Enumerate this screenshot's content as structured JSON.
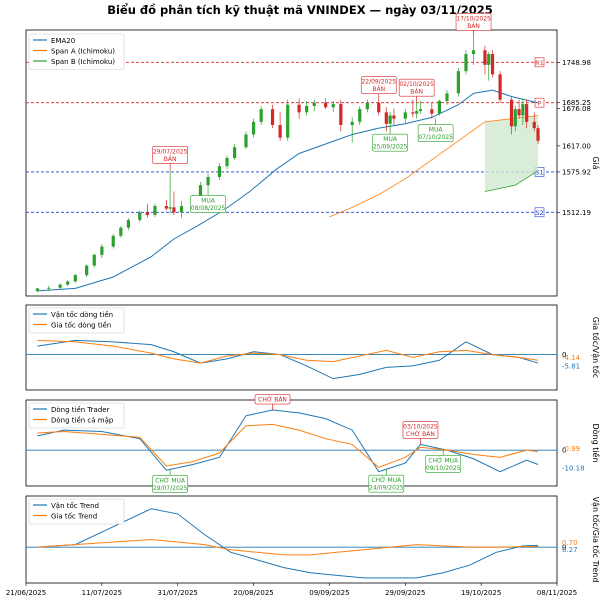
{
  "title": "Biểu đồ phân tích kỹ thuật mã VNINDEX — ngày 03/11/2025",
  "colors": {
    "ema": "#1f77b4",
    "span_a": "#ff7f0e",
    "span_b": "#2ca02c",
    "up": "#2ca02c",
    "down": "#d62728",
    "resistance": "#d62728",
    "support": "#1f3fd6",
    "cloud": "#cfe8cf",
    "zero": "#1f77b4"
  },
  "x_ticks": [
    "21/06/2025",
    "11/07/2025",
    "31/07/2025",
    "20/08/2025",
    "09/09/2025",
    "29/09/2025",
    "19/10/2025",
    "08/11/2025"
  ],
  "chart_data": [
    {
      "type": "candlestick",
      "ylabel": "Giá",
      "ylim": [
        1380,
        1800
      ],
      "legend": [
        "EMA20",
        "Span A (Ichimoku)",
        "Span B (Ichimoku)"
      ],
      "legend_position": "top-left",
      "price_labels": [
        "1748.98",
        "1685.25",
        "1676.08",
        "1617.00",
        "1575.92",
        "1512.19"
      ],
      "levels": [
        {
          "name": "R1",
          "value": 1748.98,
          "kind": "resistance"
        },
        {
          "name": "P",
          "value": 1685.25,
          "kind": "resistance"
        },
        {
          "name": "S1",
          "value": 1575.92,
          "kind": "support"
        },
        {
          "name": "S2",
          "value": 1512.19,
          "kind": "support"
        }
      ],
      "candles": [
        {
          "d": "2025-06-24",
          "o": 1388,
          "h": 1393,
          "l": 1386,
          "c": 1392
        },
        {
          "d": "2025-06-27",
          "o": 1392,
          "h": 1396,
          "l": 1388,
          "c": 1393
        },
        {
          "d": "2025-06-30",
          "o": 1393,
          "h": 1400,
          "l": 1391,
          "c": 1398
        },
        {
          "d": "2025-07-02",
          "o": 1398,
          "h": 1405,
          "l": 1396,
          "c": 1403
        },
        {
          "d": "2025-07-04",
          "o": 1403,
          "h": 1415,
          "l": 1401,
          "c": 1413
        },
        {
          "d": "2025-07-07",
          "o": 1413,
          "h": 1430,
          "l": 1410,
          "c": 1428
        },
        {
          "d": "2025-07-09",
          "o": 1428,
          "h": 1447,
          "l": 1425,
          "c": 1445
        },
        {
          "d": "2025-07-11",
          "o": 1445,
          "h": 1462,
          "l": 1440,
          "c": 1458
        },
        {
          "d": "2025-07-14",
          "o": 1458,
          "h": 1478,
          "l": 1455,
          "c": 1475
        },
        {
          "d": "2025-07-16",
          "o": 1475,
          "h": 1490,
          "l": 1472,
          "c": 1488
        },
        {
          "d": "2025-07-18",
          "o": 1488,
          "h": 1503,
          "l": 1484,
          "c": 1500
        },
        {
          "d": "2025-07-21",
          "o": 1500,
          "h": 1515,
          "l": 1497,
          "c": 1512
        },
        {
          "d": "2025-07-23",
          "o": 1512,
          "h": 1525,
          "l": 1504,
          "c": 1508
        },
        {
          "d": "2025-07-25",
          "o": 1508,
          "h": 1526,
          "l": 1505,
          "c": 1522
        },
        {
          "d": "2025-07-28",
          "o": 1522,
          "h": 1532,
          "l": 1515,
          "c": 1518
        },
        {
          "d": "2025-07-29",
          "o": 1518,
          "h": 1580,
          "l": 1510,
          "c": 1520
        },
        {
          "d": "2025-07-30",
          "o": 1520,
          "h": 1545,
          "l": 1508,
          "c": 1512
        },
        {
          "d": "2025-08-01",
          "o": 1512,
          "h": 1530,
          "l": 1503,
          "c": 1522
        },
        {
          "d": "2025-08-04",
          "o": 1522,
          "h": 1540,
          "l": 1518,
          "c": 1535
        },
        {
          "d": "2025-08-06",
          "o": 1535,
          "h": 1560,
          "l": 1532,
          "c": 1555
        },
        {
          "d": "2025-08-08",
          "o": 1555,
          "h": 1573,
          "l": 1548,
          "c": 1568
        },
        {
          "d": "2025-08-11",
          "o": 1568,
          "h": 1590,
          "l": 1563,
          "c": 1585
        },
        {
          "d": "2025-08-13",
          "o": 1585,
          "h": 1602,
          "l": 1580,
          "c": 1598
        },
        {
          "d": "2025-08-15",
          "o": 1598,
          "h": 1620,
          "l": 1595,
          "c": 1615
        },
        {
          "d": "2025-08-18",
          "o": 1615,
          "h": 1640,
          "l": 1612,
          "c": 1635
        },
        {
          "d": "2025-08-20",
          "o": 1635,
          "h": 1660,
          "l": 1630,
          "c": 1655
        },
        {
          "d": "2025-08-22",
          "o": 1655,
          "h": 1680,
          "l": 1650,
          "c": 1675
        },
        {
          "d": "2025-08-25",
          "o": 1675,
          "h": 1682,
          "l": 1645,
          "c": 1650
        },
        {
          "d": "2025-08-27",
          "o": 1650,
          "h": 1670,
          "l": 1625,
          "c": 1630
        },
        {
          "d": "2025-08-29",
          "o": 1630,
          "h": 1690,
          "l": 1625,
          "c": 1682
        },
        {
          "d": "2025-09-01",
          "o": 1682,
          "h": 1692,
          "l": 1660,
          "c": 1670
        },
        {
          "d": "2025-09-03",
          "o": 1670,
          "h": 1688,
          "l": 1665,
          "c": 1680
        },
        {
          "d": "2025-09-05",
          "o": 1680,
          "h": 1690,
          "l": 1672,
          "c": 1685
        },
        {
          "d": "2025-09-08",
          "o": 1685,
          "h": 1692,
          "l": 1675,
          "c": 1678
        },
        {
          "d": "2025-09-10",
          "o": 1678,
          "h": 1688,
          "l": 1670,
          "c": 1683
        },
        {
          "d": "2025-09-12",
          "o": 1683,
          "h": 1690,
          "l": 1640,
          "c": 1650
        },
        {
          "d": "2025-09-15",
          "o": 1650,
          "h": 1662,
          "l": 1622,
          "c": 1655
        },
        {
          "d": "2025-09-17",
          "o": 1655,
          "h": 1680,
          "l": 1650,
          "c": 1675
        },
        {
          "d": "2025-09-19",
          "o": 1675,
          "h": 1690,
          "l": 1670,
          "c": 1685
        },
        {
          "d": "2025-09-22",
          "o": 1685,
          "h": 1690,
          "l": 1665,
          "c": 1670
        },
        {
          "d": "2025-09-24",
          "o": 1670,
          "h": 1678,
          "l": 1640,
          "c": 1652
        },
        {
          "d": "2025-09-25",
          "o": 1652,
          "h": 1670,
          "l": 1645,
          "c": 1665
        },
        {
          "d": "2025-09-26",
          "o": 1665,
          "h": 1676,
          "l": 1650,
          "c": 1660
        },
        {
          "d": "2025-09-29",
          "o": 1660,
          "h": 1675,
          "l": 1652,
          "c": 1670
        },
        {
          "d": "2025-10-01",
          "o": 1670,
          "h": 1690,
          "l": 1662,
          "c": 1668
        },
        {
          "d": "2025-10-02",
          "o": 1668,
          "h": 1686,
          "l": 1660,
          "c": 1672
        },
        {
          "d": "2025-10-03",
          "o": 1672,
          "h": 1688,
          "l": 1668,
          "c": 1675
        },
        {
          "d": "2025-10-06",
          "o": 1675,
          "h": 1685,
          "l": 1660,
          "c": 1668
        },
        {
          "d": "2025-10-08",
          "o": 1668,
          "h": 1690,
          "l": 1665,
          "c": 1688
        },
        {
          "d": "2025-10-10",
          "o": 1688,
          "h": 1705,
          "l": 1682,
          "c": 1700
        },
        {
          "d": "2025-10-13",
          "o": 1700,
          "h": 1740,
          "l": 1695,
          "c": 1735
        },
        {
          "d": "2025-10-15",
          "o": 1735,
          "h": 1768,
          "l": 1730,
          "c": 1762
        },
        {
          "d": "2025-10-17",
          "o": 1762,
          "h": 1790,
          "l": 1745,
          "c": 1768
        },
        {
          "d": "2025-10-20",
          "o": 1768,
          "h": 1775,
          "l": 1730,
          "c": 1745
        },
        {
          "d": "2025-10-21",
          "o": 1745,
          "h": 1765,
          "l": 1720,
          "c": 1762
        },
        {
          "d": "2025-10-22",
          "o": 1762,
          "h": 1768,
          "l": 1725,
          "c": 1730
        },
        {
          "d": "2025-10-24",
          "o": 1730,
          "h": 1735,
          "l": 1685,
          "c": 1690
        },
        {
          "d": "2025-10-27",
          "o": 1690,
          "h": 1695,
          "l": 1635,
          "c": 1648
        },
        {
          "d": "2025-10-28",
          "o": 1648,
          "h": 1680,
          "l": 1640,
          "c": 1675
        },
        {
          "d": "2025-10-29",
          "o": 1675,
          "h": 1690,
          "l": 1660,
          "c": 1665
        },
        {
          "d": "2025-10-30",
          "o": 1665,
          "h": 1692,
          "l": 1650,
          "c": 1683
        },
        {
          "d": "2025-10-31",
          "o": 1683,
          "h": 1690,
          "l": 1645,
          "c": 1655
        },
        {
          "d": "2025-11-02",
          "o": 1655,
          "h": 1670,
          "l": 1640,
          "c": 1645
        },
        {
          "d": "2025-11-03",
          "o": 1645,
          "h": 1650,
          "l": 1620,
          "c": 1625
        }
      ],
      "ema20": {
        "x": [
          "2025-06-24",
          "2025-07-04",
          "2025-07-14",
          "2025-07-24",
          "2025-07-30",
          "2025-08-05",
          "2025-08-12",
          "2025-08-19",
          "2025-08-26",
          "2025-09-01",
          "2025-09-08",
          "2025-09-15",
          "2025-09-22",
          "2025-09-29",
          "2025-10-06",
          "2025-10-13",
          "2025-10-17",
          "2025-10-22",
          "2025-10-27",
          "2025-11-03"
        ],
        "values": [
          1388,
          1392,
          1410,
          1442,
          1470,
          1490,
          1515,
          1545,
          1580,
          1605,
          1620,
          1635,
          1645,
          1652,
          1662,
          1682,
          1700,
          1705,
          1695,
          1685
        ]
      },
      "span_a": {
        "x": [
          "2025-09-09",
          "2025-09-15",
          "2025-09-22",
          "2025-09-29",
          "2025-10-06",
          "2025-10-13",
          "2025-10-20",
          "2025-10-27",
          "2025-11-03"
        ],
        "values": [
          1505,
          1520,
          1540,
          1565,
          1595,
          1625,
          1655,
          1660,
          1665
        ]
      },
      "span_b": {
        "x": [
          "2025-10-20",
          "2025-10-24",
          "2025-10-28",
          "2025-11-01",
          "2025-11-03"
        ],
        "values": [
          1545,
          1550,
          1555,
          1570,
          1578
        ]
      },
      "annotations": [
        {
          "date": "2025-07-29",
          "price": 1580,
          "label": "29/07/2025\nBÁN",
          "kind": "sell"
        },
        {
          "date": "2025-08-08",
          "price": 1548,
          "label": "MUA\n08/08/2025",
          "kind": "buy"
        },
        {
          "date": "2025-09-22",
          "price": 1690,
          "label": "22/09/2025\nBÁN",
          "kind": "sell"
        },
        {
          "date": "2025-09-25",
          "price": 1645,
          "label": "MUA\n25/09/2025",
          "kind": "buy"
        },
        {
          "date": "2025-10-02",
          "price": 1686,
          "label": "02/10/2025\nBÁN",
          "kind": "sell"
        },
        {
          "date": "2025-10-07",
          "price": 1660,
          "label": "MUA\n07/10/2025",
          "kind": "buy"
        },
        {
          "date": "2025-10-17",
          "price": 1790,
          "label": "17/10/2025\nBÁN",
          "kind": "sell"
        }
      ]
    },
    {
      "type": "line",
      "ylabel": "Gia tốc/Vận tốc",
      "legend": [
        "Vận tốc dòng tiền",
        "Gia tốc dòng tiền"
      ],
      "legend_position": "top-left",
      "ylim": [
        -25,
        35
      ],
      "zero_label": "0",
      "end_values": [
        "-4.14",
        "-5.81"
      ],
      "x": [
        "2025-06-24",
        "2025-07-04",
        "2025-07-14",
        "2025-07-24",
        "2025-07-30",
        "2025-08-06",
        "2025-08-13",
        "2025-08-20",
        "2025-08-27",
        "2025-09-03",
        "2025-09-10",
        "2025-09-17",
        "2025-09-24",
        "2025-10-01",
        "2025-10-08",
        "2025-10-15",
        "2025-10-22",
        "2025-10-29",
        "2025-11-03"
      ],
      "series": [
        {
          "name": "Vận tốc dòng tiền",
          "values": [
            6,
            10,
            9,
            7,
            2,
            -6,
            -3,
            2,
            0,
            -8,
            -17,
            -14,
            -9,
            -8,
            -4,
            9,
            0,
            -2,
            -6
          ]
        },
        {
          "name": "Gia tốc dòng tiền",
          "values": [
            10,
            9,
            6,
            1,
            -3,
            -6,
            -1,
            1,
            0,
            -4,
            -5,
            -1,
            3,
            -2,
            2,
            3,
            0,
            -2,
            -4
          ]
        }
      ]
    },
    {
      "type": "line",
      "ylabel": "Dòng tiền",
      "legend": [
        "Dòng tiền Trader",
        "Dòng tiền cá mập"
      ],
      "legend_position": "top-left",
      "ylim": [
        -25,
        35
      ],
      "zero_label": "0",
      "end_values": [
        "-0.99",
        "-10.18"
      ],
      "x": [
        "2025-06-24",
        "2025-07-01",
        "2025-07-11",
        "2025-07-21",
        "2025-07-28",
        "2025-08-04",
        "2025-08-11",
        "2025-08-18",
        "2025-08-25",
        "2025-09-01",
        "2025-09-08",
        "2025-09-15",
        "2025-09-22",
        "2025-09-29",
        "2025-10-03",
        "2025-10-10",
        "2025-10-17",
        "2025-10-24",
        "2025-10-31",
        "2025-11-03"
      ],
      "series": [
        {
          "name": "Dòng tiền Trader",
          "values": [
            10,
            14,
            13,
            8,
            -14,
            -10,
            -5,
            24,
            28,
            26,
            22,
            14,
            -15,
            -9,
            4,
            0,
            -6,
            -15,
            -7,
            -10
          ]
        },
        {
          "name": "Dòng tiền cá mập",
          "values": [
            12,
            13,
            11,
            9,
            -11,
            -8,
            -2,
            17,
            18,
            14,
            8,
            4,
            -12,
            -5,
            2,
            0,
            -3,
            -5,
            0,
            -1
          ]
        }
      ],
      "annotations": [
        {
          "date": "2025-07-29",
          "label": "CHỜ MUA\n29/07/2025",
          "kind": "buy"
        },
        {
          "date": "2025-08-25",
          "label": "CHỜ BÁN",
          "kind": "sell"
        },
        {
          "date": "2025-09-24",
          "label": "CHỜ MUA\n24/09/2025",
          "kind": "buy"
        },
        {
          "date": "2025-10-03",
          "label": "03/10/2025\nCHỜ BÁN",
          "kind": "sell"
        },
        {
          "date": "2025-10-09",
          "label": "CHỜ MUA\n09/10/2025",
          "kind": "buy"
        }
      ]
    },
    {
      "type": "line",
      "ylabel": "Vận tốc/Gia tốc Trend",
      "legend": [
        "Vận tốc Trend",
        "Gia tốc Trend"
      ],
      "legend_position": "top-left",
      "ylim": [
        -14,
        20
      ],
      "zero_label": "0",
      "end_values": [
        "0.70",
        "0.27"
      ],
      "x": [
        "2025-06-24",
        "2025-07-04",
        "2025-07-14",
        "2025-07-24",
        "2025-07-31",
        "2025-08-07",
        "2025-08-14",
        "2025-08-21",
        "2025-08-28",
        "2025-09-04",
        "2025-09-11",
        "2025-09-18",
        "2025-09-25",
        "2025-10-02",
        "2025-10-09",
        "2025-10-16",
        "2025-10-23",
        "2025-10-30",
        "2025-11-03"
      ],
      "series": [
        {
          "name": "Vận tốc Trend",
          "values": [
            0,
            1,
            8,
            15,
            13,
            5,
            -2,
            -5,
            -8,
            -10,
            -11,
            -12,
            -12,
            -12,
            -10,
            -7,
            -2,
            0.5,
            0.7
          ]
        },
        {
          "name": "Gia tốc Trend",
          "values": [
            0,
            1,
            2,
            3,
            2,
            1,
            -1,
            -2,
            -3,
            -3,
            -2,
            -1,
            0,
            1,
            0.5,
            0,
            0,
            0.2,
            0.27
          ]
        }
      ]
    }
  ]
}
